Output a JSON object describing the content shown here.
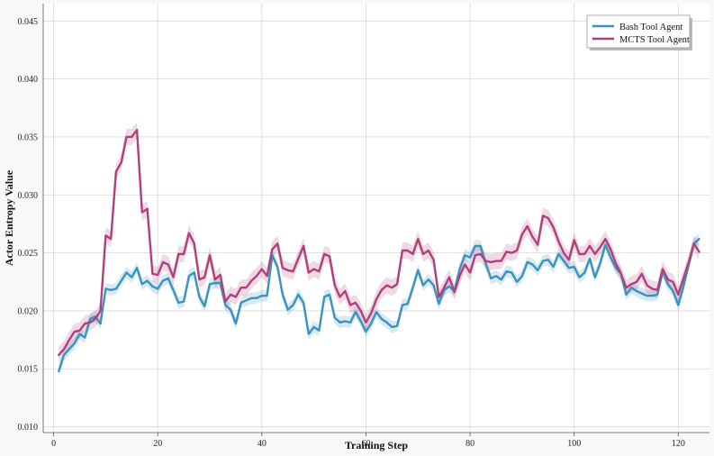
{
  "chart_data": {
    "type": "line",
    "xlabel": "Training Step",
    "ylabel": "Actor Entropy Value",
    "xlim": [
      -2,
      126
    ],
    "ylim": [
      0.0095,
      0.0465
    ],
    "xticks": [
      0,
      20,
      40,
      60,
      80,
      100,
      120
    ],
    "yticks": [
      0.01,
      0.015,
      0.02,
      0.025,
      0.03,
      0.035,
      0.04,
      0.045
    ],
    "grid": true,
    "legend_position": "top-right",
    "colors": {
      "bash": "#3a93bd",
      "mcts": "#b03f7c",
      "grid": "#d8d8d8",
      "axis": "#555555"
    },
    "x": [
      1,
      2,
      3,
      4,
      5,
      6,
      7,
      8,
      9,
      10,
      11,
      12,
      13,
      14,
      15,
      16,
      17,
      18,
      19,
      20,
      21,
      22,
      23,
      24,
      25,
      26,
      27,
      28,
      29,
      30,
      31,
      32,
      33,
      34,
      35,
      36,
      37,
      38,
      39,
      40,
      41,
      42,
      43,
      44,
      45,
      46,
      47,
      48,
      49,
      50,
      51,
      52,
      53,
      54,
      55,
      56,
      57,
      58,
      59,
      60,
      61,
      62,
      63,
      64,
      65,
      66,
      67,
      68,
      69,
      70,
      71,
      72,
      73,
      74,
      75,
      76,
      77,
      78,
      79,
      80,
      81,
      82,
      83,
      84,
      85,
      86,
      87,
      88,
      89,
      90,
      91,
      92,
      93,
      94,
      95,
      96,
      97,
      98,
      99,
      100,
      101,
      102,
      103,
      104,
      105,
      106,
      107,
      108,
      109,
      110,
      111,
      112,
      113,
      114,
      115,
      116,
      117,
      118,
      119,
      120,
      121,
      122,
      123,
      124
    ],
    "series": [
      {
        "name": "Bash Tool Agent",
        "color": "#3a93bd",
        "values": [
          0.0148,
          0.0162,
          0.0167,
          0.0172,
          0.018,
          0.0177,
          0.0193,
          0.0195,
          0.0189,
          0.0219,
          0.0218,
          0.0219,
          0.0226,
          0.0233,
          0.0229,
          0.0237,
          0.0223,
          0.0226,
          0.0221,
          0.0219,
          0.0226,
          0.0228,
          0.0218,
          0.0207,
          0.0208,
          0.023,
          0.0233,
          0.0212,
          0.0204,
          0.0223,
          0.0224,
          0.0224,
          0.0205,
          0.0201,
          0.0189,
          0.0207,
          0.0209,
          0.0211,
          0.0211,
          0.0213,
          0.0213,
          0.0248,
          0.0238,
          0.0214,
          0.0201,
          0.0205,
          0.0214,
          0.0207,
          0.018,
          0.0186,
          0.0183,
          0.0212,
          0.0214,
          0.0194,
          0.019,
          0.0191,
          0.019,
          0.0199,
          0.0191,
          0.0182,
          0.0189,
          0.0199,
          0.0193,
          0.019,
          0.0186,
          0.0187,
          0.0205,
          0.0206,
          0.022,
          0.0235,
          0.0222,
          0.0227,
          0.0222,
          0.0206,
          0.0218,
          0.0221,
          0.0217,
          0.0236,
          0.0248,
          0.0246,
          0.0256,
          0.0256,
          0.0241,
          0.0228,
          0.023,
          0.0227,
          0.0234,
          0.0233,
          0.0225,
          0.023,
          0.0242,
          0.024,
          0.0235,
          0.0243,
          0.0244,
          0.0238,
          0.0249,
          0.0243,
          0.0237,
          0.0238,
          0.0229,
          0.0233,
          0.0245,
          0.0229,
          0.0241,
          0.0257,
          0.0246,
          0.0237,
          0.0232,
          0.0214,
          0.022,
          0.0217,
          0.0215,
          0.0213,
          0.0213,
          0.0214,
          0.0234,
          0.0223,
          0.0217,
          0.0205,
          0.0221,
          0.024,
          0.0258,
          0.0262
        ],
        "band_width": 0.0005
      },
      {
        "name": "MCTS Tool Agent",
        "color": "#b03f7c",
        "values": [
          0.0162,
          0.0167,
          0.0175,
          0.0182,
          0.0183,
          0.0189,
          0.019,
          0.0193,
          0.02,
          0.0265,
          0.0262,
          0.032,
          0.0328,
          0.035,
          0.035,
          0.0356,
          0.0285,
          0.0288,
          0.0232,
          0.0231,
          0.0242,
          0.024,
          0.0229,
          0.0249,
          0.0249,
          0.0267,
          0.0258,
          0.0227,
          0.0229,
          0.0248,
          0.0227,
          0.0231,
          0.0208,
          0.0214,
          0.0212,
          0.022,
          0.022,
          0.0226,
          0.023,
          0.0236,
          0.023,
          0.0253,
          0.0258,
          0.0237,
          0.0235,
          0.0234,
          0.0245,
          0.0256,
          0.0233,
          0.0236,
          0.0234,
          0.0249,
          0.0247,
          0.0222,
          0.0212,
          0.0217,
          0.0205,
          0.0207,
          0.02,
          0.019,
          0.0198,
          0.021,
          0.0218,
          0.0222,
          0.022,
          0.0223,
          0.0252,
          0.0252,
          0.0249,
          0.0262,
          0.0249,
          0.0252,
          0.0244,
          0.0212,
          0.022,
          0.0229,
          0.0216,
          0.023,
          0.024,
          0.0233,
          0.0248,
          0.0249,
          0.0243,
          0.0242,
          0.0243,
          0.0243,
          0.0251,
          0.025,
          0.0252,
          0.0266,
          0.0273,
          0.0264,
          0.0257,
          0.0282,
          0.028,
          0.0272,
          0.026,
          0.025,
          0.0244,
          0.0261,
          0.0249,
          0.0249,
          0.0256,
          0.0249,
          0.0255,
          0.0262,
          0.0253,
          0.0241,
          0.0232,
          0.022,
          0.0223,
          0.0225,
          0.0232,
          0.0222,
          0.0219,
          0.0218,
          0.0236,
          0.0227,
          0.0225,
          0.0214,
          0.0228,
          0.0242,
          0.0258,
          0.0251
        ],
        "band_width": 0.0007
      }
    ]
  }
}
